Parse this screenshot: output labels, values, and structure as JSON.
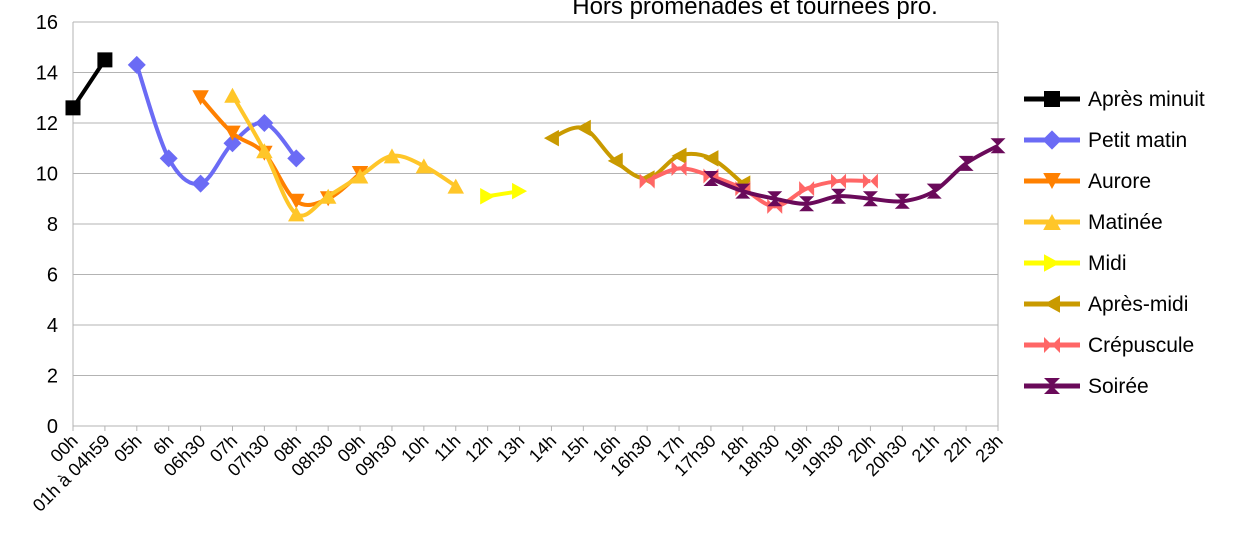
{
  "chart_data": {
    "type": "line",
    "title": "Hors promenades et tournées pro.",
    "categories": [
      "00h",
      "01h à 04h59",
      "05h",
      "6h",
      "06h30",
      "07h",
      "07h30",
      "08h",
      "08h30",
      "09h",
      "09h30",
      "10h",
      "11h",
      "12h",
      "13h",
      "14h",
      "15h",
      "16h",
      "16h30",
      "17h",
      "17h30",
      "18h",
      "18h30",
      "19h",
      "19h30",
      "20h",
      "20h30",
      "21h",
      "22h",
      "23h"
    ],
    "series": [
      {
        "name": "Après minuit",
        "color": "#000000",
        "marker": "square",
        "values": [
          12.6,
          14.5,
          null,
          null,
          null,
          null,
          null,
          null,
          null,
          null,
          null,
          null,
          null,
          null,
          null,
          null,
          null,
          null,
          null,
          null,
          null,
          null,
          null,
          null,
          null,
          null,
          null,
          null,
          null,
          null
        ]
      },
      {
        "name": "Petit matin",
        "color": "#6b6bf5",
        "marker": "diamond",
        "values": [
          null,
          null,
          14.3,
          10.6,
          9.6,
          11.2,
          12.0,
          10.6,
          null,
          null,
          null,
          null,
          null,
          null,
          null,
          null,
          null,
          null,
          null,
          null,
          null,
          null,
          null,
          null,
          null,
          null,
          null,
          null,
          null,
          null
        ]
      },
      {
        "name": "Aurore",
        "color": "#ff8000",
        "marker": "triangle-down",
        "values": [
          null,
          null,
          null,
          null,
          13.0,
          11.6,
          10.8,
          8.9,
          9.0,
          10.0,
          null,
          null,
          null,
          null,
          null,
          null,
          null,
          null,
          null,
          null,
          null,
          null,
          null,
          null,
          null,
          null,
          null,
          null,
          null,
          null
        ]
      },
      {
        "name": "Matinée",
        "color": "#ffc629",
        "marker": "triangle-up",
        "values": [
          null,
          null,
          null,
          null,
          null,
          13.1,
          10.9,
          8.4,
          9.1,
          9.9,
          10.7,
          10.3,
          9.5,
          null,
          null,
          null,
          null,
          null,
          null,
          null,
          null,
          null,
          null,
          null,
          null,
          null,
          null,
          null,
          null,
          null
        ]
      },
      {
        "name": "Midi",
        "color": "#ffff00",
        "marker": "triangle-right",
        "values": [
          null,
          null,
          null,
          null,
          null,
          null,
          null,
          null,
          null,
          null,
          null,
          null,
          null,
          9.1,
          9.3,
          null,
          null,
          null,
          null,
          null,
          null,
          null,
          null,
          null,
          null,
          null,
          null,
          null,
          null,
          null
        ]
      },
      {
        "name": "Après-midi",
        "color": "#c99a00",
        "marker": "triangle-left",
        "values": [
          null,
          null,
          null,
          null,
          null,
          null,
          null,
          null,
          null,
          null,
          null,
          null,
          null,
          null,
          null,
          11.4,
          11.8,
          10.5,
          9.8,
          10.7,
          10.6,
          9.6,
          null,
          null,
          null,
          null,
          null,
          null,
          null,
          null
        ]
      },
      {
        "name": "Crépuscule",
        "color": "#ff6666",
        "marker": "bowtie",
        "values": [
          null,
          null,
          null,
          null,
          null,
          null,
          null,
          null,
          null,
          null,
          null,
          null,
          null,
          null,
          null,
          null,
          null,
          null,
          9.7,
          10.2,
          9.9,
          9.4,
          8.7,
          9.4,
          9.7,
          9.7,
          null,
          null,
          null,
          null
        ]
      },
      {
        "name": "Soirée",
        "color": "#6a0a5a",
        "marker": "hourglass",
        "values": [
          null,
          null,
          null,
          null,
          null,
          null,
          null,
          null,
          null,
          null,
          null,
          null,
          null,
          null,
          null,
          null,
          null,
          null,
          null,
          null,
          9.8,
          9.3,
          9.0,
          8.8,
          9.1,
          9.0,
          8.9,
          9.3,
          10.4,
          11.1
        ]
      }
    ],
    "ylim": [
      0,
      16
    ],
    "yticks": [
      0,
      2,
      4,
      6,
      8,
      10,
      12,
      14,
      16
    ],
    "grid": true,
    "legend": "right"
  }
}
